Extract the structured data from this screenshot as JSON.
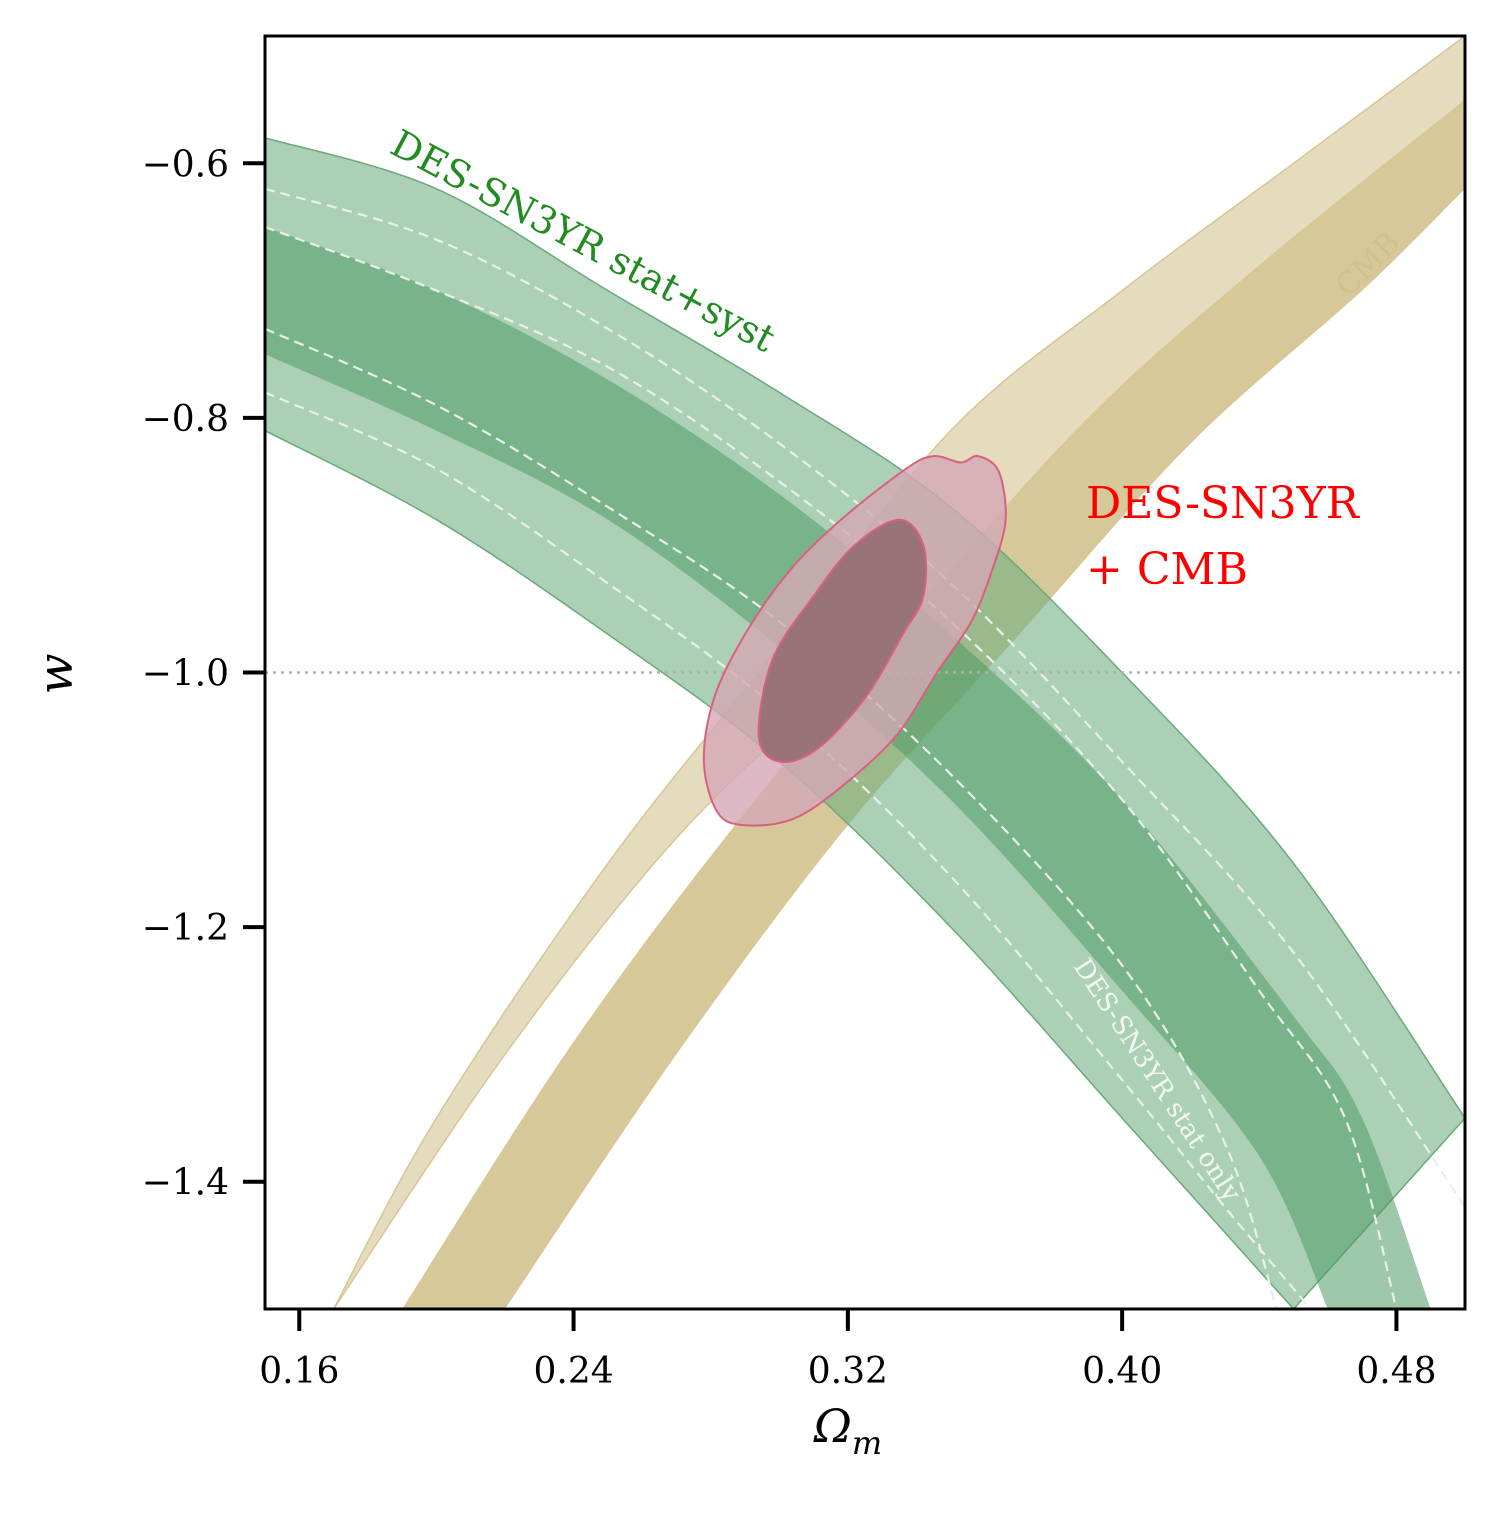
{
  "chart_data": {
    "type": "contour",
    "xlabel": "Ω",
    "xlabel_sub": "m",
    "ylabel": "w",
    "xlim": [
      0.15,
      0.5
    ],
    "ylim": [
      -1.5,
      -0.5
    ],
    "x_ticks": [
      0.16,
      0.24,
      0.32,
      0.4,
      0.48
    ],
    "x_tick_labels": [
      "0.16",
      "0.24",
      "0.32",
      "0.40",
      "0.48"
    ],
    "y_ticks": [
      -0.6,
      -0.8,
      -1.0,
      -1.2,
      -1.4
    ],
    "y_tick_labels": [
      "−0.6",
      "−0.8",
      "−1.0",
      "−1.2",
      "−1.4"
    ],
    "reference_line": {
      "w": -1.0,
      "style": "dotted",
      "color": "#b0b0b0"
    },
    "grid": false,
    "series": [
      {
        "name": "CMB",
        "color": "#c9b06a",
        "outer_color": "#e5dcbd",
        "inner_color": "#d6c898",
        "outer_lower": [
          [
            0.17,
            -1.5
          ],
          [
            0.22,
            -1.3
          ],
          [
            0.27,
            -1.13
          ],
          [
            0.32,
            -1.0
          ],
          [
            0.37,
            -0.87
          ],
          [
            0.42,
            -0.75
          ],
          [
            0.47,
            -0.63
          ],
          [
            0.5,
            -0.55
          ]
        ],
        "outer_upper": [
          [
            0.17,
            -1.5
          ],
          [
            0.2,
            -1.35
          ],
          [
            0.25,
            -1.15
          ],
          [
            0.3,
            -0.98
          ],
          [
            0.35,
            -0.81
          ],
          [
            0.4,
            -0.7
          ],
          [
            0.45,
            -0.6
          ],
          [
            0.5,
            -0.5
          ]
        ],
        "inner_lower": [
          [
            0.22,
            -1.5
          ],
          [
            0.27,
            -1.3
          ],
          [
            0.32,
            -1.12
          ],
          [
            0.37,
            -0.97
          ],
          [
            0.42,
            -0.82
          ],
          [
            0.47,
            -0.7
          ],
          [
            0.5,
            -0.62
          ]
        ],
        "inner_upper": [
          [
            0.19,
            -1.5
          ],
          [
            0.24,
            -1.29
          ],
          [
            0.29,
            -1.11
          ],
          [
            0.34,
            -0.95
          ],
          [
            0.39,
            -0.8
          ],
          [
            0.44,
            -0.68
          ],
          [
            0.5,
            -0.55
          ]
        ]
      },
      {
        "name": "DES-SN3YR stat+syst",
        "color": "#228B22",
        "outer_color": "#a8cfb3",
        "inner_color": "#6fad80",
        "outer_top": [
          [
            0.15,
            -0.58
          ],
          [
            0.2,
            -0.62
          ],
          [
            0.25,
            -0.7
          ],
          [
            0.3,
            -0.78
          ],
          [
            0.35,
            -0.87
          ],
          [
            0.4,
            -1.0
          ],
          [
            0.45,
            -1.15
          ],
          [
            0.5,
            -1.35
          ]
        ],
        "outer_bottom": [
          [
            0.15,
            -0.81
          ],
          [
            0.2,
            -0.88
          ],
          [
            0.25,
            -0.97
          ],
          [
            0.3,
            -1.07
          ],
          [
            0.35,
            -1.2
          ],
          [
            0.4,
            -1.35
          ],
          [
            0.45,
            -1.5
          ]
        ],
        "inner_top": [
          [
            0.15,
            -0.65
          ],
          [
            0.2,
            -0.7
          ],
          [
            0.25,
            -0.77
          ],
          [
            0.3,
            -0.86
          ],
          [
            0.35,
            -0.97
          ],
          [
            0.4,
            -1.1
          ],
          [
            0.45,
            -1.27
          ],
          [
            0.47,
            -1.35
          ],
          [
            0.49,
            -1.5
          ]
        ],
        "inner_bottom": [
          [
            0.15,
            -0.75
          ],
          [
            0.2,
            -0.81
          ],
          [
            0.25,
            -0.88
          ],
          [
            0.3,
            -0.98
          ],
          [
            0.35,
            -1.1
          ],
          [
            0.4,
            -1.25
          ],
          [
            0.44,
            -1.38
          ],
          [
            0.46,
            -1.5
          ]
        ]
      },
      {
        "name": "DES-SN3YR stat only",
        "color": "#e8f0ea",
        "line_style": "dashed",
        "outer_top": [
          [
            0.15,
            -0.62
          ],
          [
            0.2,
            -0.66
          ],
          [
            0.25,
            -0.73
          ],
          [
            0.3,
            -0.82
          ],
          [
            0.35,
            -0.93
          ],
          [
            0.4,
            -1.07
          ],
          [
            0.45,
            -1.22
          ],
          [
            0.5,
            -1.42
          ]
        ],
        "outer_bottom": [
          [
            0.15,
            -0.78
          ],
          [
            0.2,
            -0.84
          ],
          [
            0.25,
            -0.93
          ],
          [
            0.3,
            -1.03
          ],
          [
            0.35,
            -1.16
          ],
          [
            0.4,
            -1.32
          ],
          [
            0.43,
            -1.42
          ],
          [
            0.455,
            -1.5
          ]
        ],
        "inner_top": [
          [
            0.15,
            -0.65
          ],
          [
            0.2,
            -0.7
          ],
          [
            0.25,
            -0.76
          ],
          [
            0.3,
            -0.85
          ],
          [
            0.35,
            -0.96
          ],
          [
            0.4,
            -1.1
          ],
          [
            0.44,
            -1.25
          ],
          [
            0.465,
            -1.35
          ],
          [
            0.48,
            -1.5
          ]
        ],
        "inner_bottom": [
          [
            0.15,
            -0.73
          ],
          [
            0.2,
            -0.79
          ],
          [
            0.25,
            -0.87
          ],
          [
            0.3,
            -0.96
          ],
          [
            0.35,
            -1.08
          ],
          [
            0.4,
            -1.23
          ],
          [
            0.43,
            -1.37
          ],
          [
            0.445,
            -1.5
          ]
        ]
      },
      {
        "name": "DES-SN3YR + CMB",
        "color": "#ff0000",
        "outer_color": "#c6a5b0",
        "inner_color": "#977077",
        "edge_color": "#d9607e",
        "outer": [
          [
            0.337,
            -0.84
          ],
          [
            0.345,
            -0.83
          ],
          [
            0.353,
            -0.835
          ],
          [
            0.358,
            -0.83
          ],
          [
            0.364,
            -0.842
          ],
          [
            0.366,
            -0.88
          ],
          [
            0.362,
            -0.92
          ],
          [
            0.356,
            -0.96
          ],
          [
            0.346,
            -1.0
          ],
          [
            0.334,
            -1.05
          ],
          [
            0.318,
            -1.09
          ],
          [
            0.304,
            -1.115
          ],
          [
            0.29,
            -1.12
          ],
          [
            0.282,
            -1.11
          ],
          [
            0.278,
            -1.07
          ],
          [
            0.281,
            -1.02
          ],
          [
            0.29,
            -0.97
          ],
          [
            0.303,
            -0.92
          ],
          [
            0.318,
            -0.88
          ]
        ],
        "inner": [
          [
            0.335,
            -0.88
          ],
          [
            0.342,
            -0.9
          ],
          [
            0.342,
            -0.94
          ],
          [
            0.336,
            -0.97
          ],
          [
            0.325,
            -1.02
          ],
          [
            0.311,
            -1.06
          ],
          [
            0.3,
            -1.07
          ],
          [
            0.294,
            -1.05
          ],
          [
            0.298,
            -0.99
          ],
          [
            0.31,
            -0.94
          ],
          [
            0.322,
            -0.9
          ]
        ]
      }
    ],
    "annotations": [
      {
        "text": "DES-SN3YR stat+syst",
        "color": "#228B22"
      },
      {
        "text": "CMB",
        "color": "#d2bf8b"
      },
      {
        "text": "DES-SN3YR",
        "color": "#ff0000"
      },
      {
        "text": "+ CMB",
        "color": "#ff0000"
      },
      {
        "text": "DES-SN3YR stat only",
        "color": "#f4f8f5"
      }
    ]
  }
}
